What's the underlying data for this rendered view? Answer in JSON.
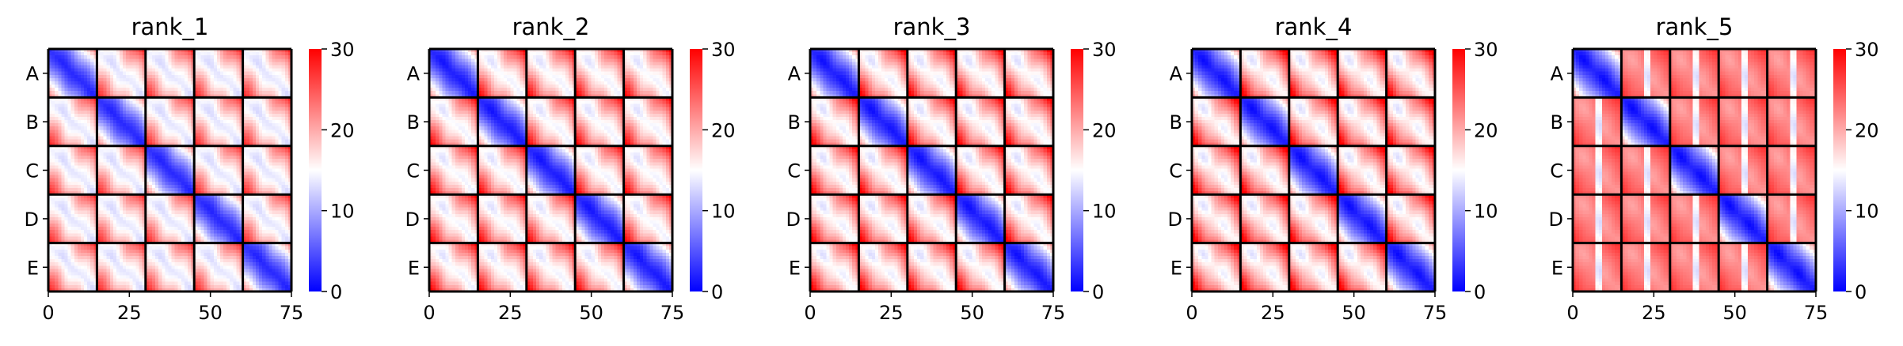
{
  "chart_data": [
    {
      "type": "heatmap",
      "title": "rank_1",
      "n_groups": 5,
      "group_size": 15,
      "diag_strength": 0.78,
      "off_strength": 0.42,
      "block_warmth": 1.0,
      "pattern_shift": 0.0
    },
    {
      "type": "heatmap",
      "title": "rank_2",
      "n_groups": 5,
      "group_size": 15,
      "diag_strength": 0.9,
      "off_strength": 0.34,
      "block_warmth": 1.08,
      "pattern_shift": 0.2
    },
    {
      "type": "heatmap",
      "title": "rank_3",
      "n_groups": 5,
      "group_size": 15,
      "diag_strength": 0.92,
      "off_strength": 0.33,
      "block_warmth": 1.12,
      "pattern_shift": 0.4
    },
    {
      "type": "heatmap",
      "title": "rank_4",
      "n_groups": 5,
      "group_size": 15,
      "diag_strength": 0.94,
      "off_strength": 0.3,
      "block_warmth": 1.15,
      "pattern_shift": 0.6
    },
    {
      "type": "heatmap",
      "title": "rank_5",
      "n_groups": 5,
      "group_size": 15,
      "diag_strength": 0.95,
      "off_strength": 0.05,
      "block_warmth": 1.45,
      "pattern_shift": 0.8
    }
  ],
  "shared": {
    "y_tick_labels": [
      "A",
      "B",
      "C",
      "D",
      "E"
    ],
    "x_ticks": [
      0,
      25,
      50,
      75
    ],
    "xlim": [
      0,
      75
    ],
    "colorbar": {
      "ticks": [
        0,
        10,
        20,
        30
      ],
      "vmin": 0,
      "vmax": 30,
      "colormap": "bwr"
    },
    "colors": {
      "low": "#0000ff",
      "mid": "#ffffff",
      "high": "#ff0000",
      "block_border": "#000000"
    }
  }
}
